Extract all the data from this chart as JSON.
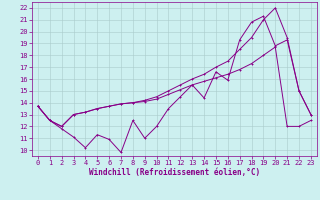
{
  "xlabel": "Windchill (Refroidissement éolien,°C)",
  "xlim": [
    -0.5,
    23.5
  ],
  "ylim": [
    9.5,
    22.5
  ],
  "xticks": [
    0,
    1,
    2,
    3,
    4,
    5,
    6,
    7,
    8,
    9,
    10,
    11,
    12,
    13,
    14,
    15,
    16,
    17,
    18,
    19,
    20,
    21,
    22,
    23
  ],
  "yticks": [
    10,
    11,
    12,
    13,
    14,
    15,
    16,
    17,
    18,
    19,
    20,
    21,
    22
  ],
  "bg_color": "#cdf0f0",
  "line_color": "#880088",
  "grid_color": "#aacccc",
  "curve1_x": [
    0,
    1,
    2,
    3,
    4,
    5,
    6,
    7,
    8,
    9,
    10,
    11,
    12,
    13,
    14,
    15,
    16,
    17,
    18,
    19,
    20,
    21,
    22,
    23
  ],
  "curve1_y": [
    13.7,
    12.5,
    11.8,
    11.1,
    10.2,
    11.3,
    10.9,
    9.8,
    12.5,
    11.0,
    12.0,
    13.5,
    14.5,
    15.5,
    14.4,
    16.6,
    15.9,
    19.3,
    20.8,
    21.3,
    18.8,
    19.3,
    15.0,
    13.0
  ],
  "curve2_x": [
    0,
    1,
    2,
    3,
    4,
    5,
    6,
    7,
    8,
    9,
    10,
    11,
    12,
    13,
    14,
    15,
    16,
    17,
    18,
    19,
    20,
    21,
    22,
    23
  ],
  "curve2_y": [
    13.7,
    12.5,
    12.0,
    13.0,
    13.2,
    13.5,
    13.7,
    13.9,
    14.0,
    14.2,
    14.5,
    15.0,
    15.5,
    16.0,
    16.4,
    17.0,
    17.5,
    18.5,
    19.5,
    21.0,
    22.0,
    19.5,
    15.0,
    13.0
  ],
  "curve3_x": [
    0,
    1,
    2,
    3,
    4,
    5,
    6,
    7,
    8,
    9,
    10,
    11,
    12,
    13,
    14,
    15,
    16,
    17,
    18,
    19,
    20,
    21,
    22,
    23
  ],
  "curve3_y": [
    13.7,
    12.5,
    12.0,
    13.0,
    13.2,
    13.5,
    13.7,
    13.9,
    14.0,
    14.1,
    14.3,
    14.7,
    15.1,
    15.5,
    15.8,
    16.1,
    16.4,
    16.8,
    17.3,
    18.0,
    18.7,
    12.0,
    12.0,
    12.5
  ],
  "xlabel_fontsize": 5.5,
  "tick_fontsize": 5,
  "lw": 0.7,
  "ms": 2.0
}
